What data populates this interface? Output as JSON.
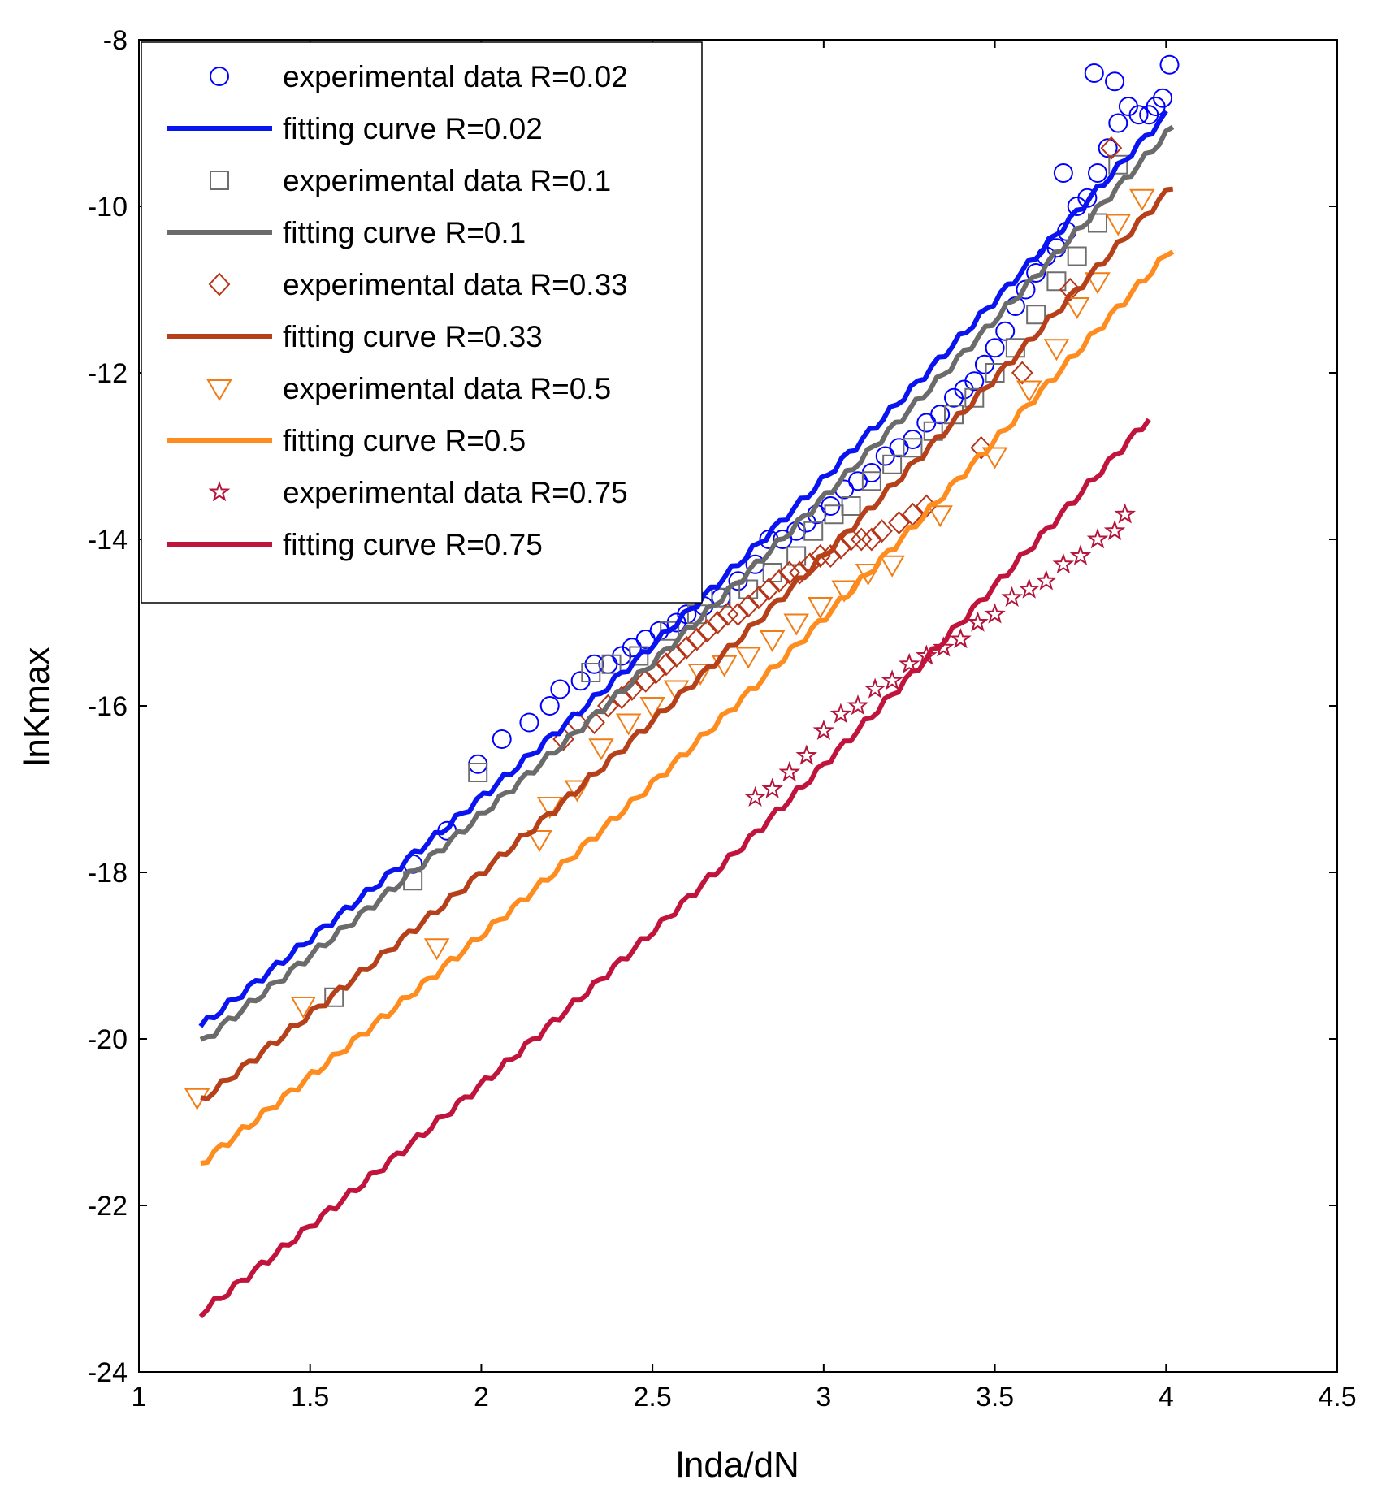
{
  "chart_data": {
    "type": "scatter",
    "xlabel": "lnda/dN",
    "ylabel": "lnKmax",
    "xlim": [
      1,
      4.5
    ],
    "ylim": [
      -24,
      -8
    ],
    "xticks": [
      "1",
      "1.5",
      "2",
      "2.5",
      "3",
      "3.5",
      "4",
      "4.5"
    ],
    "yticks": [
      "-8",
      "-10",
      "-12",
      "-14",
      "-16",
      "-18",
      "-20",
      "-22",
      "-24"
    ],
    "grid": false,
    "legend_position": "top-left",
    "legend": [
      {
        "label": "experimental data R=0.02",
        "kind": "marker",
        "marker": "circle",
        "color": "#0000ff"
      },
      {
        "label": "fitting curve R=0.02",
        "kind": "line",
        "color": "#0a14f0"
      },
      {
        "label": "experimental data R=0.1",
        "kind": "marker",
        "marker": "square",
        "color": "#6e6e6e"
      },
      {
        "label": "fitting curve R=0.1",
        "kind": "line",
        "color": "#6b6b6b"
      },
      {
        "label": "experimental data R=0.33",
        "kind": "marker",
        "marker": "diamond",
        "color": "#b53418"
      },
      {
        "label": "fitting curve R=0.33",
        "kind": "line",
        "color": "#b5401a"
      },
      {
        "label": "experimental data R=0.5",
        "kind": "marker",
        "marker": "triangle-down",
        "color": "#f27d15"
      },
      {
        "label": "fitting curve R=0.5",
        "kind": "line",
        "color": "#ff8c1f"
      },
      {
        "label": "experimental data R=0.75",
        "kind": "marker",
        "marker": "star",
        "color": "#b5143a"
      },
      {
        "label": "fitting curve R=0.75",
        "kind": "line",
        "color": "#c0143c"
      }
    ],
    "fitting_curves": [
      {
        "name": "fitting curve R=0.02",
        "color": "#0a14f0",
        "x": [
          1.18,
          4.0
        ],
        "y": [
          -19.85,
          -8.9
        ]
      },
      {
        "name": "fitting curve R=0.1",
        "color": "#6b6b6b",
        "x": [
          1.18,
          4.02
        ],
        "y": [
          -20.05,
          -9.05
        ]
      },
      {
        "name": "fitting curve R=0.33",
        "color": "#b5401a",
        "x": [
          1.18,
          4.02
        ],
        "y": [
          -20.75,
          -9.75
        ]
      },
      {
        "name": "fitting curve R=0.5",
        "color": "#ff8c1f",
        "x": [
          1.18,
          4.02
        ],
        "y": [
          -21.5,
          -10.5
        ]
      },
      {
        "name": "fitting curve R=0.75",
        "color": "#c0143c",
        "x": [
          1.18,
          3.95
        ],
        "y": [
          -23.3,
          -12.55
        ]
      }
    ],
    "experimental_data": [
      {
        "name": "experimental data R=0.02",
        "marker": "circle",
        "color": "#0000ff",
        "x": [
          1.8,
          1.9,
          1.99,
          2.06,
          2.14,
          2.2,
          2.23,
          2.29,
          2.33,
          2.37,
          2.41,
          2.44,
          2.48,
          2.52,
          2.57,
          2.6,
          2.65,
          2.7,
          2.75,
          2.8,
          2.84,
          2.88,
          2.92,
          2.95,
          2.98,
          3.02,
          3.06,
          3.1,
          3.14,
          3.18,
          3.22,
          3.26,
          3.3,
          3.34,
          3.38,
          3.41,
          3.44,
          3.47,
          3.5,
          3.53,
          3.56,
          3.59,
          3.62,
          3.65,
          3.68,
          3.71,
          3.74,
          3.77,
          3.8,
          3.83,
          3.86,
          3.89,
          3.92,
          3.95,
          3.97,
          3.99,
          4.01,
          3.85,
          3.79,
          3.7
        ],
        "y": [
          -17.9,
          -17.5,
          -16.7,
          -16.4,
          -16.2,
          -16.0,
          -15.8,
          -15.7,
          -15.5,
          -15.5,
          -15.4,
          -15.3,
          -15.2,
          -15.1,
          -15.0,
          -14.9,
          -14.8,
          -14.7,
          -14.5,
          -14.3,
          -14.0,
          -14.0,
          -13.9,
          -13.8,
          -13.7,
          -13.6,
          -13.4,
          -13.3,
          -13.2,
          -13.0,
          -12.9,
          -12.8,
          -12.6,
          -12.5,
          -12.3,
          -12.2,
          -12.1,
          -11.9,
          -11.7,
          -11.5,
          -11.2,
          -11.0,
          -10.8,
          -10.6,
          -10.5,
          -10.3,
          -10.0,
          -9.9,
          -9.6,
          -9.3,
          -9.0,
          -8.8,
          -8.9,
          -8.9,
          -8.8,
          -8.7,
          -8.3,
          -8.5,
          -8.4,
          -9.6
        ]
      },
      {
        "name": "experimental data R=0.1",
        "marker": "square",
        "color": "#6e6e6e",
        "x": [
          1.8,
          1.99,
          2.32,
          2.38,
          2.46,
          2.55,
          2.63,
          2.7,
          2.78,
          2.85,
          2.92,
          2.97,
          3.03,
          3.08,
          3.14,
          3.2,
          3.26,
          3.32,
          3.38,
          3.44,
          3.5,
          3.56,
          3.62,
          3.68,
          3.74,
          3.8,
          3.86,
          1.57
        ],
        "y": [
          -18.1,
          -16.8,
          -15.6,
          -15.5,
          -15.4,
          -15.1,
          -14.9,
          -14.7,
          -14.6,
          -14.4,
          -14.2,
          -13.9,
          -13.7,
          -13.6,
          -13.3,
          -13.1,
          -12.9,
          -12.7,
          -12.5,
          -12.3,
          -12.0,
          -11.7,
          -11.3,
          -10.9,
          -10.6,
          -10.2,
          -9.5,
          -19.5
        ]
      },
      {
        "name": "experimental data R=0.33",
        "marker": "diamond",
        "color": "#b53418",
        "x": [
          2.24,
          2.28,
          2.33,
          2.37,
          2.41,
          2.44,
          2.48,
          2.51,
          2.54,
          2.57,
          2.6,
          2.63,
          2.66,
          2.69,
          2.72,
          2.75,
          2.78,
          2.81,
          2.84,
          2.87,
          2.9,
          2.93,
          2.96,
          2.99,
          3.02,
          3.05,
          3.08,
          3.11,
          3.14,
          3.17,
          3.22,
          3.26,
          3.3,
          3.46,
          3.58,
          3.72,
          3.84
        ],
        "y": [
          -16.4,
          -16.2,
          -16.2,
          -16.0,
          -15.9,
          -15.8,
          -15.7,
          -15.6,
          -15.5,
          -15.4,
          -15.3,
          -15.2,
          -15.1,
          -15.0,
          -14.9,
          -14.9,
          -14.8,
          -14.7,
          -14.6,
          -14.5,
          -14.4,
          -14.4,
          -14.3,
          -14.2,
          -14.2,
          -14.1,
          -14.0,
          -14.0,
          -14.0,
          -13.9,
          -13.8,
          -13.7,
          -13.6,
          -12.9,
          -12.0,
          -11.0,
          -9.3
        ]
      },
      {
        "name": "experimental data R=0.5",
        "marker": "triangle-down",
        "color": "#f27d15",
        "x": [
          1.17,
          1.48,
          1.87,
          2.17,
          2.2,
          2.28,
          2.35,
          2.43,
          2.5,
          2.57,
          2.64,
          2.71,
          2.78,
          2.85,
          2.92,
          2.99,
          3.06,
          3.13,
          3.2,
          3.34,
          3.5,
          3.6,
          3.68,
          3.74,
          3.8,
          3.86,
          3.93
        ],
        "y": [
          -20.7,
          -19.6,
          -18.9,
          -17.6,
          -17.2,
          -17.0,
          -16.5,
          -16.2,
          -16.0,
          -15.8,
          -15.6,
          -15.5,
          -15.4,
          -15.2,
          -15.0,
          -14.8,
          -14.6,
          -14.4,
          -14.3,
          -13.7,
          -13.0,
          -12.2,
          -11.7,
          -11.2,
          -10.9,
          -10.2,
          -9.9
        ]
      },
      {
        "name": "experimental data R=0.75",
        "marker": "star",
        "color": "#b5143a",
        "x": [
          2.8,
          2.85,
          2.9,
          2.95,
          3.0,
          3.05,
          3.1,
          3.15,
          3.2,
          3.25,
          3.3,
          3.35,
          3.4,
          3.45,
          3.5,
          3.55,
          3.6,
          3.65,
          3.7,
          3.75,
          3.8,
          3.85,
          3.88
        ],
        "y": [
          -17.1,
          -17.0,
          -16.8,
          -16.6,
          -16.3,
          -16.1,
          -16.0,
          -15.8,
          -15.7,
          -15.5,
          -15.4,
          -15.3,
          -15.2,
          -15.0,
          -14.9,
          -14.7,
          -14.6,
          -14.5,
          -14.3,
          -14.2,
          -14.0,
          -13.9,
          -13.7
        ]
      }
    ]
  }
}
